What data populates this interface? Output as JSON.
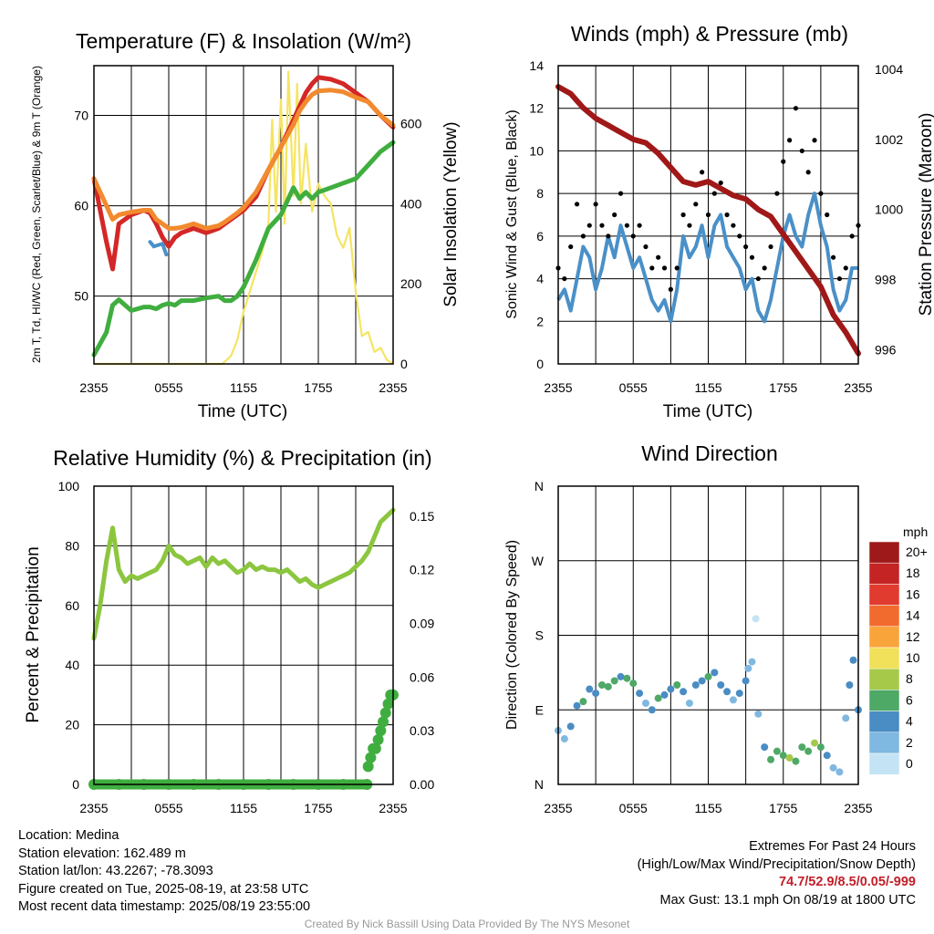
{
  "colors": {
    "red": "#d42727",
    "orange": "#f28a2e",
    "green": "#3fae3f",
    "blue": "#4a90c8",
    "yellow": "#f5e463",
    "black": "#000000",
    "maroon": "#a01818",
    "rh": "#8cc63f",
    "precip": "#3fae3f",
    "extremes": "#c0202a"
  },
  "x_ticks": [
    "2355",
    "0555",
    "1155",
    "1755",
    "2355"
  ],
  "chart_data": [
    {
      "id": "temperature",
      "type": "line",
      "title": "Temperature (F) & Insolation (W/m²)",
      "xlabel": "Time (UTC)",
      "ylabel": "2m T, Td, HI/WC (Red, Green, Scarlet/Blue) & 9m T (Orange)",
      "y2label": "Solar Insolation (Yellow)",
      "ylim": [
        42.5,
        75.5
      ],
      "y_ticks": [
        50,
        60,
        70
      ],
      "y2lim": [
        0,
        745
      ],
      "y2_ticks": [
        0,
        200,
        400,
        600
      ],
      "x_hours": [
        0,
        1,
        1.5,
        2,
        3,
        4,
        4.5,
        5,
        5.5,
        6,
        6.5,
        7,
        8,
        9,
        10,
        10.5,
        11,
        11.5,
        12,
        13,
        14,
        15,
        16,
        16.5,
        17,
        17.5,
        18,
        19,
        20,
        21,
        22,
        23,
        24
      ],
      "series": [
        {
          "name": "2m T",
          "color": "red",
          "values": [
            63,
            56,
            53,
            58,
            59,
            59.5,
            59.2,
            58,
            56.5,
            55.5,
            56.5,
            57,
            57.5,
            57,
            57.5,
            58,
            58.5,
            59,
            59.5,
            61,
            64,
            66.5,
            69.5,
            71,
            72.5,
            73.5,
            74.2,
            74,
            73.5,
            72.5,
            71.5,
            70,
            68.7
          ]
        },
        {
          "name": "9m T",
          "color": "orange",
          "values": [
            63,
            60,
            58.5,
            59,
            59.3,
            59.5,
            59.5,
            58.5,
            58,
            57.5,
            57.5,
            57.6,
            58,
            57.5,
            57.8,
            58.2,
            58.7,
            59.2,
            59.8,
            61.5,
            64,
            66.5,
            69,
            70.5,
            71.5,
            72.3,
            72.7,
            72.8,
            72.6,
            72,
            71.5,
            70,
            68.9
          ]
        },
        {
          "name": "Td",
          "color": "green",
          "values": [
            43.5,
            46,
            49,
            49.6,
            48.4,
            48.8,
            48.8,
            48.6,
            49,
            49.2,
            49,
            49.5,
            49.5,
            49.8,
            50,
            49.5,
            49.5,
            50,
            51,
            54,
            57.5,
            59,
            62,
            60.8,
            61.5,
            60.8,
            61.5,
            62,
            62.5,
            63,
            64.5,
            66,
            67
          ]
        }
      ],
      "heat_index": {
        "name": "WC",
        "color": "blue",
        "points": [
          [
            4.5,
            56
          ],
          [
            4.8,
            55.5
          ],
          [
            5.5,
            55.8
          ],
          [
            5.8,
            54.6
          ]
        ]
      },
      "insolation": {
        "name": "Solar Insolation",
        "color": "yellow",
        "x": [
          0,
          10.3,
          11,
          11.5,
          12,
          12.5,
          13,
          13.5,
          14,
          14.3,
          14.6,
          15,
          15.3,
          15.6,
          16,
          16.3,
          16.6,
          17,
          17.5,
          18,
          18.5,
          19,
          19.5,
          20,
          20.5,
          21,
          21.5,
          22,
          22.5,
          23,
          23.5,
          24
        ],
        "values": [
          0,
          0,
          20,
          60,
          130,
          180,
          230,
          280,
          350,
          610,
          380,
          660,
          350,
          730,
          420,
          700,
          400,
          550,
          380,
          450,
          420,
          400,
          320,
          290,
          340,
          180,
          70,
          80,
          30,
          40,
          10,
          0
        ]
      }
    },
    {
      "id": "winds",
      "type": "line",
      "title": "Winds (mph) & Pressure (mb)",
      "xlabel": "Time (UTC)",
      "ylabel": "Sonic Wind & Gust (Blue, Black)",
      "y2label": "Station Pressure (Maroon)",
      "ylim": [
        0,
        14
      ],
      "y_ticks": [
        0,
        2,
        4,
        6,
        8,
        10,
        12,
        14
      ],
      "y2lim": [
        995.6,
        1004.1
      ],
      "y2_ticks": [
        996,
        998,
        1000,
        1002,
        1004
      ],
      "wind": {
        "name": "Sonic Wind",
        "color": "blue",
        "x": [
          0,
          0.5,
          1,
          1.5,
          2,
          2.5,
          3,
          3.5,
          4,
          4.5,
          5,
          5.5,
          6,
          6.5,
          7,
          7.5,
          8,
          8.5,
          9,
          9.5,
          10,
          10.5,
          11,
          11.5,
          12,
          12.5,
          13,
          13.5,
          14,
          14.5,
          15,
          15.5,
          16,
          16.5,
          17,
          17.5,
          18,
          18.5,
          19,
          19.5,
          20,
          20.5,
          21,
          21.5,
          22,
          22.5,
          23,
          23.5,
          24
        ],
        "values": [
          3,
          3.5,
          2.5,
          4,
          5.5,
          5,
          3.5,
          4.5,
          6,
          5,
          6.5,
          5.5,
          4.5,
          5,
          4,
          3,
          2.5,
          3,
          2,
          3.5,
          6,
          5,
          5.5,
          6.5,
          5,
          6.5,
          7,
          5.5,
          5,
          4.5,
          3.5,
          4,
          2.5,
          2,
          3,
          4.5,
          6,
          7,
          6,
          5.5,
          7,
          8,
          6.5,
          5.5,
          3.5,
          2.5,
          3,
          4.5,
          4.5
        ]
      },
      "gust": {
        "name": "Gust",
        "color": "black",
        "x": [
          0,
          0.5,
          1,
          1.5,
          2,
          2.5,
          3,
          3.5,
          4,
          4.5,
          5,
          5.5,
          6,
          6.5,
          7,
          7.5,
          8,
          8.5,
          9,
          9.5,
          10,
          10.5,
          11,
          11.5,
          12,
          12.5,
          13,
          13.5,
          14,
          14.5,
          15,
          15.5,
          16,
          16.5,
          17,
          17.5,
          18,
          18.5,
          19,
          19.5,
          20,
          20.5,
          21,
          21.5,
          22,
          22.5,
          23,
          23.5,
          24
        ],
        "values": [
          4.5,
          4,
          5.5,
          7.5,
          6,
          6.5,
          7.5,
          6.5,
          6,
          7,
          8,
          6.5,
          6,
          6.5,
          5.5,
          4.5,
          5,
          4.5,
          3.5,
          4.5,
          7,
          6.5,
          7.5,
          9,
          7,
          8,
          8.5,
          7,
          6.5,
          6,
          5.5,
          5,
          4,
          4.5,
          5.5,
          8,
          9.5,
          10.5,
          12,
          10,
          9,
          10.5,
          8,
          7,
          5,
          4,
          4.5,
          6,
          6.5
        ]
      },
      "pressure": {
        "name": "Station Pressure",
        "color": "maroon",
        "x": [
          0,
          1,
          2,
          3,
          4,
          5,
          6,
          7,
          8,
          9,
          10,
          11,
          12,
          13,
          14,
          15,
          16,
          17,
          18,
          19,
          20,
          21,
          22,
          23,
          24
        ],
        "values": [
          1003.5,
          1003.3,
          1002.9,
          1002.6,
          1002.4,
          1002.2,
          1002.0,
          1001.9,
          1001.6,
          1001.2,
          1000.8,
          1000.7,
          1000.8,
          1000.6,
          1000.4,
          1000.3,
          1000.0,
          999.8,
          999.3,
          998.8,
          998.3,
          997.8,
          997.0,
          996.5,
          995.9
        ]
      }
    },
    {
      "id": "humidity",
      "type": "line",
      "title": "Relative Humidity (%) & Precipitation (in)",
      "xlabel": "",
      "ylabel": "Percent & Precipitation",
      "ylim": [
        0,
        100
      ],
      "y_ticks": [
        0,
        20,
        40,
        60,
        80,
        100
      ],
      "y2lim": [
        0,
        0.1667
      ],
      "y2_ticks": [
        "0.00",
        "0.03",
        "0.06",
        "0.09",
        "0.12",
        "0.15"
      ],
      "rh": {
        "name": "Relative Humidity",
        "color": "rh",
        "x": [
          0,
          0.5,
          1,
          1.5,
          2,
          2.5,
          3,
          3.5,
          4,
          4.5,
          5,
          5.5,
          6,
          6.5,
          7,
          7.5,
          8,
          8.5,
          9,
          9.5,
          10,
          10.5,
          11,
          11.5,
          12,
          12.5,
          13,
          13.5,
          14,
          14.5,
          15,
          15.5,
          16,
          16.5,
          17,
          17.5,
          18,
          18.5,
          19,
          19.5,
          20,
          20.5,
          21,
          21.5,
          22,
          22.5,
          23,
          23.5,
          24
        ],
        "values": [
          49,
          60,
          75,
          86,
          72,
          68,
          70,
          69,
          70,
          71,
          72,
          75,
          80,
          77,
          76,
          74,
          75,
          76,
          73,
          76,
          74,
          75,
          73,
          71,
          72,
          74,
          72,
          73,
          72,
          72,
          71,
          72,
          70,
          68,
          69,
          67,
          66,
          67,
          68,
          69,
          70,
          71,
          73,
          75,
          78,
          83,
          88,
          90,
          92
        ]
      },
      "precip": {
        "name": "Precipitation",
        "color": "precip",
        "x": [
          0,
          2,
          4,
          6,
          8,
          10,
          12,
          14,
          16,
          18,
          20,
          21.9,
          22,
          22.2,
          22.4,
          22.6,
          22.8,
          23,
          23.2,
          23.4,
          23.6,
          23.8,
          24
        ],
        "values": [
          0,
          0,
          0,
          0,
          0,
          0,
          0,
          0,
          0,
          0,
          0,
          0,
          0.01,
          0.015,
          0.02,
          0.02,
          0.025,
          0.03,
          0.035,
          0.04,
          0.045,
          0.05,
          0.05
        ]
      }
    },
    {
      "id": "direction",
      "type": "scatter",
      "title": "Wind Direction",
      "xlabel": "",
      "ylabel": "Direction (Colored By Speed)",
      "ylim": [
        0,
        360
      ],
      "y_ticks": [
        "N",
        "E",
        "S",
        "W",
        "N"
      ],
      "legend": {
        "title": "mph",
        "labels": [
          "20+",
          "18",
          "16",
          "14",
          "12",
          "10",
          "8",
          "6",
          "4",
          "2",
          "0"
        ],
        "colors": [
          "#9e1a1a",
          "#c42424",
          "#e03b2e",
          "#f26b2e",
          "#f9a43a",
          "#f1e05a",
          "#a6c94a",
          "#4ea866",
          "#4a8cc4",
          "#7fb8e0",
          "#c4e4f5"
        ]
      },
      "x": [
        0,
        0.5,
        1,
        1.5,
        2,
        2.5,
        3,
        3.5,
        4,
        4.5,
        5,
        5.5,
        6,
        6.5,
        7,
        7.5,
        8,
        8.5,
        9,
        9.5,
        10,
        10.5,
        11,
        11.5,
        12,
        12.5,
        13,
        13.5,
        14,
        14.5,
        15,
        15.2,
        15.5,
        15.8,
        16,
        16.5,
        17,
        17.5,
        18,
        18.5,
        19,
        19.5,
        20,
        20.5,
        21,
        21.5,
        22,
        22.5,
        23,
        23.3,
        23.6,
        24
      ],
      "values": [
        65,
        55,
        70,
        95,
        100,
        115,
        110,
        120,
        118,
        125,
        130,
        128,
        122,
        110,
        98,
        90,
        104,
        108,
        115,
        120,
        112,
        98,
        120,
        125,
        130,
        135,
        120,
        112,
        102,
        110,
        125,
        140,
        148,
        200,
        85,
        45,
        30,
        40,
        35,
        32,
        28,
        45,
        40,
        50,
        45,
        35,
        20,
        15,
        80,
        120,
        150,
        90
      ],
      "speeds": [
        2,
        2,
        4,
        4,
        6,
        4,
        4,
        6,
        6,
        6,
        4,
        6,
        6,
        4,
        2,
        4,
        6,
        4,
        4,
        6,
        4,
        2,
        4,
        4,
        6,
        4,
        4,
        4,
        2,
        4,
        4,
        2,
        2,
        0,
        2,
        4,
        6,
        6,
        6,
        8,
        6,
        6,
        6,
        8,
        6,
        4,
        2,
        2,
        2,
        4,
        4,
        4
      ]
    }
  ],
  "info": {
    "location": "Location: Medina",
    "elevation": "Station elevation: 162.489 m",
    "latlon": "Station lat/lon: 43.2267; -78.3093",
    "created": "Figure created on Tue, 2025-08-19, at 23:58 UTC",
    "recent": "Most recent data timestamp: 2025/08/19 23:55:00"
  },
  "extremes": {
    "title": "Extremes For Past 24 Hours",
    "subtitle": "(High/Low/Max Wind/Precipitation/Snow Depth)",
    "values": "74.7/52.9/8.5/0.05/-999",
    "max_gust": "Max Gust: 13.1 mph On 08/19 at 1800 UTC"
  },
  "credit": "Created By Nick Bassill Using Data Provided By The NYS Mesonet"
}
